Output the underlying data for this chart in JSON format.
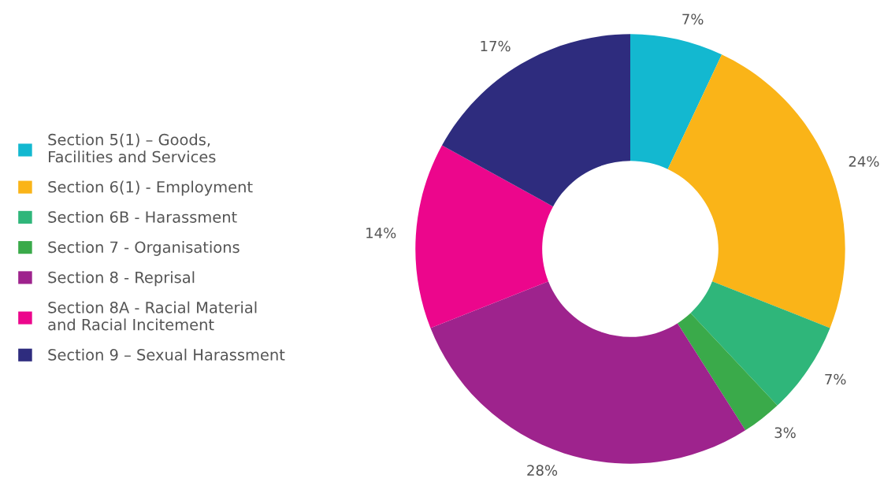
{
  "chart_data": {
    "type": "donut",
    "categories": [
      "Section 5(1) – Goods,\nFacilities and Services",
      "Section 6(1) - Employment",
      "Section 6B - Harassment",
      "Section 7 - Organisations",
      "Section 8 - Reprisal",
      "Section 8A - Racial Material\nand Racial Incitement",
      "Section 9 – Sexual Harassment"
    ],
    "values": [
      7,
      24,
      7,
      3,
      28,
      14,
      17
    ],
    "value_labels": [
      "7%",
      "24%",
      "7%",
      "3%",
      "28%",
      "14%",
      "17%"
    ],
    "colors": [
      "#13b8d0",
      "#fab418",
      "#2fb67a",
      "#3aaa4a",
      "#9e238d",
      "#ec068c",
      "#2e2c7e"
    ],
    "legend": "left"
  }
}
